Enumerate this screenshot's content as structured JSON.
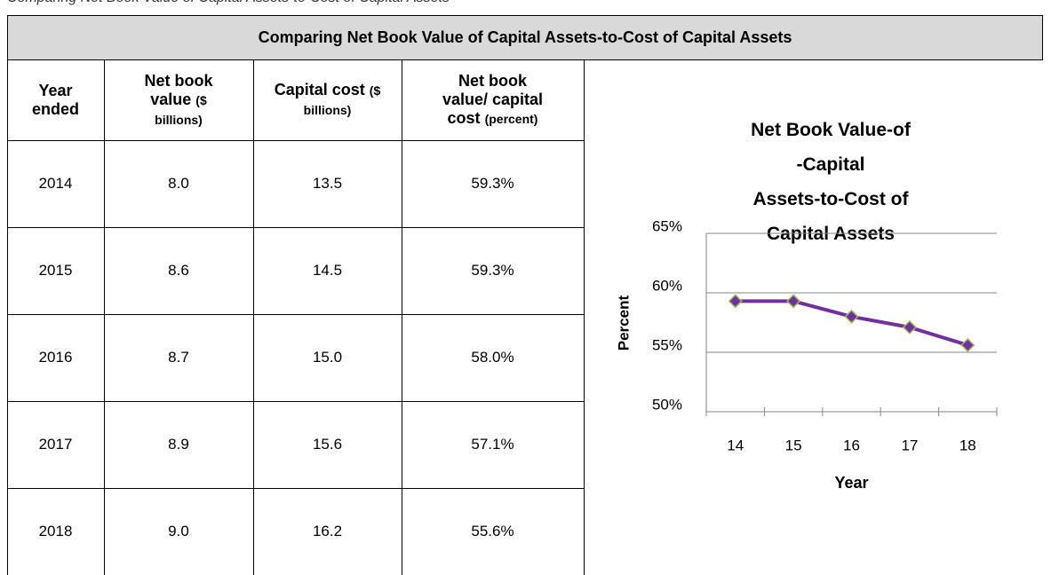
{
  "caption": "Comparing Net Book Value of Capital Assets-to-Cost of Capital Assets",
  "table": {
    "title": "Comparing Net Book Value of Capital Assets-to-Cost of Capital Assets",
    "header": [
      {
        "label": "Year ended"
      },
      {
        "label": "Net book value",
        "unit": "($ billions)"
      },
      {
        "label": "Capital cost",
        "unit": "($ billions)"
      },
      {
        "label": "Net book value/ capital cost",
        "unit": "(percent)"
      }
    ],
    "rows": [
      [
        "2014",
        "8.0",
        "13.5",
        "59.3%"
      ],
      [
        "2015",
        "8.6",
        "14.5",
        "59.3%"
      ],
      [
        "2016",
        "8.7",
        "15.0",
        "58.0%"
      ],
      [
        "2017",
        "8.9",
        "15.6",
        "57.1%"
      ],
      [
        "2018",
        "9.0",
        "16.2",
        "55.6%"
      ]
    ]
  },
  "chart_data": {
    "type": "line",
    "title": "Net Book Value-of -Capital Assets-to-Cost of Capital Assets",
    "x_label": "Year",
    "y_label": "Percent",
    "categories": [
      "14",
      "15",
      "16",
      "17",
      "18"
    ],
    "values": [
      59.3,
      59.3,
      58.0,
      57.1,
      55.6
    ],
    "color": "#7030a0",
    "marker_edge_color": "#9bbb59",
    "ylim": [
      50,
      65
    ],
    "yticks": [
      {
        "value": 50,
        "label": "50%"
      },
      {
        "value": 55,
        "label": "55%"
      },
      {
        "value": 60,
        "label": "60%"
      },
      {
        "value": 65,
        "label": "65%"
      }
    ],
    "grid": true
  }
}
